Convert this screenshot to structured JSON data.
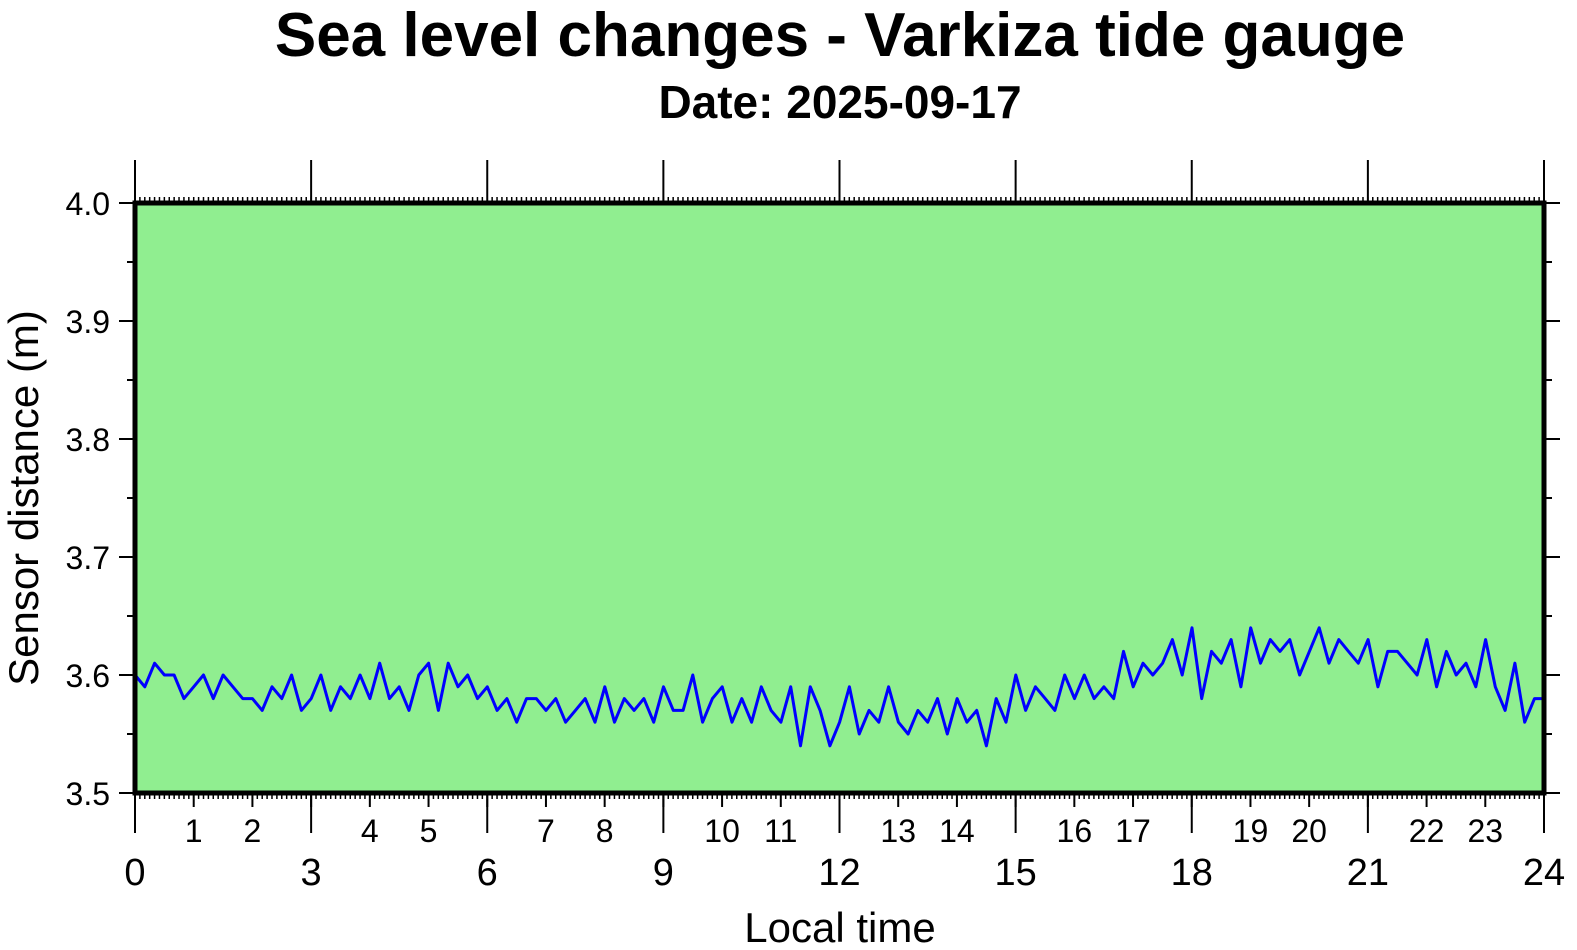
{
  "chart_data": {
    "type": "line",
    "title": "Sea level changes - Varkiza tide gauge",
    "subtitle": "Date: 2025-09-17",
    "xlabel": "Local time",
    "ylabel": "Sensor distance (m)",
    "xlim": [
      0,
      24
    ],
    "ylim": [
      3.5,
      4.0
    ],
    "x_major_ticks": [
      "0",
      "3",
      "6",
      "9",
      "12",
      "15",
      "18",
      "21",
      "24"
    ],
    "x_hour_ticks": [
      "1",
      "2",
      "4",
      "5",
      "7",
      "8",
      "10",
      "11",
      "13",
      "14",
      "16",
      "17",
      "19",
      "20",
      "22",
      "23"
    ],
    "y_ticks": [
      "3.5",
      "3.6",
      "3.7",
      "3.8",
      "3.9",
      "4.0"
    ],
    "background_color": "#90ee90",
    "line_color": "#0000ff",
    "x_step_hours": 0.1667,
    "series": [
      {
        "name": "Sensor distance",
        "values": [
          3.6,
          3.59,
          3.61,
          3.6,
          3.6,
          3.58,
          3.59,
          3.6,
          3.58,
          3.6,
          3.59,
          3.58,
          3.58,
          3.57,
          3.59,
          3.58,
          3.6,
          3.57,
          3.58,
          3.6,
          3.57,
          3.59,
          3.58,
          3.6,
          3.58,
          3.61,
          3.58,
          3.59,
          3.57,
          3.6,
          3.61,
          3.57,
          3.61,
          3.59,
          3.6,
          3.58,
          3.59,
          3.57,
          3.58,
          3.56,
          3.58,
          3.58,
          3.57,
          3.58,
          3.56,
          3.57,
          3.58,
          3.56,
          3.59,
          3.56,
          3.58,
          3.57,
          3.58,
          3.56,
          3.59,
          3.57,
          3.57,
          3.6,
          3.56,
          3.58,
          3.59,
          3.56,
          3.58,
          3.56,
          3.59,
          3.57,
          3.56,
          3.59,
          3.54,
          3.59,
          3.57,
          3.54,
          3.56,
          3.59,
          3.55,
          3.57,
          3.56,
          3.59,
          3.56,
          3.55,
          3.57,
          3.56,
          3.58,
          3.55,
          3.58,
          3.56,
          3.57,
          3.54,
          3.58,
          3.56,
          3.6,
          3.57,
          3.59,
          3.58,
          3.57,
          3.6,
          3.58,
          3.6,
          3.58,
          3.59,
          3.58,
          3.62,
          3.59,
          3.61,
          3.6,
          3.61,
          3.63,
          3.6,
          3.64,
          3.58,
          3.62,
          3.61,
          3.63,
          3.59,
          3.64,
          3.61,
          3.63,
          3.62,
          3.63,
          3.6,
          3.62,
          3.64,
          3.61,
          3.63,
          3.62,
          3.61,
          3.63,
          3.59,
          3.62,
          3.62,
          3.61,
          3.6,
          3.63,
          3.59,
          3.62,
          3.6,
          3.61,
          3.59,
          3.63,
          3.59,
          3.57,
          3.61,
          3.56,
          3.58,
          3.58
        ]
      }
    ]
  }
}
